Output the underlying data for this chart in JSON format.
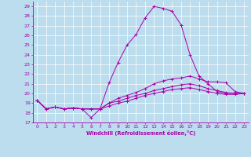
{
  "xlabel": "Windchill (Refroidissement éolien,°C)",
  "bg_color": "#bbddee",
  "line_color": "#aa00aa",
  "grid_color": "#ffffff",
  "xlim": [
    -0.5,
    23.5
  ],
  "ylim": [
    17,
    29.5
  ],
  "yticks": [
    17,
    18,
    19,
    20,
    21,
    22,
    23,
    24,
    25,
    26,
    27,
    28,
    29
  ],
  "xticks": [
    0,
    1,
    2,
    3,
    4,
    5,
    6,
    7,
    8,
    9,
    10,
    11,
    12,
    13,
    14,
    15,
    16,
    17,
    18,
    19,
    20,
    21,
    22,
    23
  ],
  "series": [
    {
      "x": [
        0,
        1,
        2,
        3,
        4,
        5,
        6,
        7,
        8,
        9,
        10,
        11,
        12,
        13,
        14,
        15,
        16,
        17,
        18,
        19,
        20,
        21,
        22,
        23
      ],
      "y": [
        19.3,
        18.4,
        18.6,
        18.4,
        18.5,
        18.4,
        18.4,
        18.4,
        21.1,
        23.2,
        25.0,
        26.1,
        27.8,
        29.0,
        28.8,
        28.5,
        27.1,
        24.0,
        21.8,
        21.0,
        20.2,
        20.0,
        20.0,
        20.0
      ]
    },
    {
      "x": [
        0,
        1,
        2,
        3,
        4,
        5,
        6,
        7,
        8,
        9,
        10,
        11,
        12,
        13,
        14,
        15,
        16,
        17,
        18,
        19,
        20,
        21,
        22,
        23
      ],
      "y": [
        19.3,
        18.4,
        18.6,
        18.4,
        18.5,
        18.4,
        18.4,
        18.4,
        19.0,
        19.5,
        19.8,
        20.1,
        20.5,
        21.0,
        21.3,
        21.5,
        21.6,
        21.8,
        21.5,
        21.2,
        21.2,
        21.1,
        20.2,
        20.0
      ]
    },
    {
      "x": [
        0,
        1,
        2,
        3,
        4,
        5,
        6,
        7,
        8,
        9,
        10,
        11,
        12,
        13,
        14,
        15,
        16,
        17,
        18,
        19,
        20,
        21,
        22,
        23
      ],
      "y": [
        19.3,
        18.4,
        18.6,
        18.4,
        18.5,
        18.4,
        17.5,
        18.4,
        19.0,
        19.2,
        19.5,
        19.8,
        20.0,
        20.3,
        20.5,
        20.7,
        20.9,
        21.0,
        20.8,
        20.5,
        20.3,
        20.1,
        20.0,
        20.0
      ]
    },
    {
      "x": [
        0,
        1,
        2,
        3,
        4,
        5,
        6,
        7,
        8,
        9,
        10,
        11,
        12,
        13,
        14,
        15,
        16,
        17,
        18,
        19,
        20,
        21,
        22,
        23
      ],
      "y": [
        19.3,
        18.4,
        18.6,
        18.4,
        18.5,
        18.4,
        18.4,
        18.4,
        18.7,
        19.0,
        19.2,
        19.5,
        19.8,
        20.0,
        20.2,
        20.4,
        20.5,
        20.6,
        20.4,
        20.2,
        20.0,
        19.9,
        19.9,
        20.0
      ]
    }
  ]
}
